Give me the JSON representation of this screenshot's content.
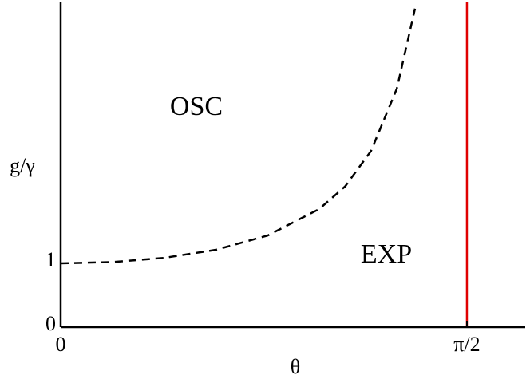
{
  "chart_data": {
    "type": "line",
    "x_label": "θ",
    "y_label": "g/γ",
    "xlim": [
      0,
      1.7962
    ],
    "ylim": [
      0,
      5.0875
    ],
    "xticks": [
      0,
      {
        "value": 1.5708,
        "label": "π/2"
      }
    ],
    "yticks": [
      0,
      1
    ],
    "series": [
      {
        "color": "#000000",
        "dash": true,
        "x": [
          0,
          0.2,
          0.4,
          0.6,
          0.8,
          1.0,
          1.1,
          1.2,
          1.3,
          1.37
        ],
        "values": [
          1,
          1.02,
          1.086,
          1.212,
          1.435,
          1.851,
          2.205,
          2.76,
          3.738,
          4.99
        ]
      },
      {
        "color": "#e00000",
        "dash": false,
        "x": [
          1.5708,
          1.5708
        ],
        "values": [
          0,
          5.0875
        ]
      }
    ],
    "annotations": [
      "OSC",
      "EXP"
    ]
  }
}
